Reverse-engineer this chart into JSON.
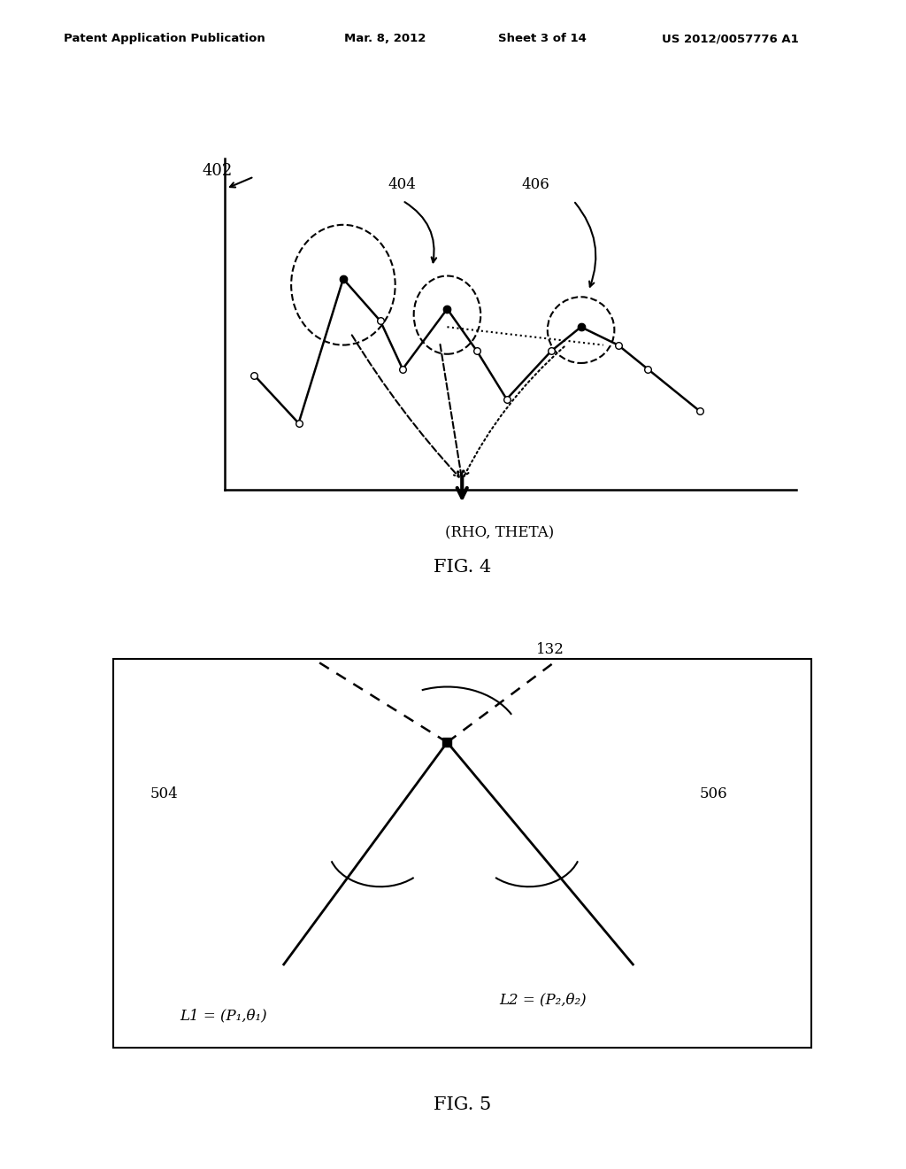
{
  "bg_color": "#ffffff",
  "header_text": "Patent Application Publication",
  "header_date": "Mar. 8, 2012",
  "header_sheet": "Sheet 3 of 14",
  "header_patent": "US 2012/0057776 A1",
  "fig4_label": "FIG. 4",
  "fig5_label": "FIG. 5",
  "label_402": "402",
  "label_404": "404",
  "label_406": "406",
  "xlabel": "(RHO, THETA)",
  "label_132": "132",
  "label_504": "504",
  "label_506": "506",
  "l1_label": "L1 = (P₁,θ₁)",
  "l2_label": "L2 = (P₂,θ₂)"
}
